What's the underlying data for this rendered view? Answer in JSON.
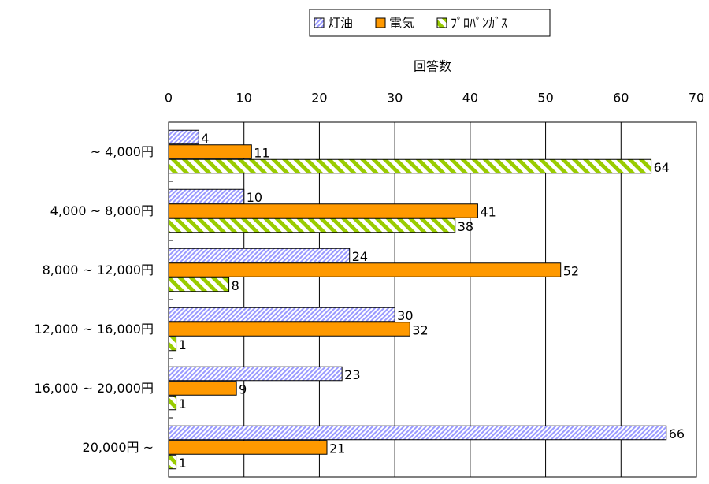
{
  "chart_data": {
    "type": "barh",
    "x_label": "回答数",
    "categories": [
      "~ 4,000円",
      "4,000 ~ 8,000円",
      "8,000 ~ 12,000円",
      "12,000 ~ 16,000円",
      "16,000 ~ 20,000円",
      "20,000円 ~"
    ],
    "series": [
      {
        "name": "灯油",
        "color": "#9999ff",
        "values": [
          4,
          10,
          24,
          30,
          23,
          66
        ]
      },
      {
        "name": "電気",
        "color": "#ff9900",
        "values": [
          11,
          41,
          52,
          32,
          9,
          21
        ]
      },
      {
        "name": "ﾌﾟﾛﾊﾟﾝｶﾞｽ",
        "color": "#99cc00",
        "values": [
          64,
          38,
          8,
          1,
          1,
          1
        ]
      }
    ],
    "xlim": [
      0,
      70
    ],
    "xticks": [
      0,
      10,
      20,
      30,
      40,
      50,
      60,
      70
    ],
    "grid": true,
    "legend": "top"
  }
}
